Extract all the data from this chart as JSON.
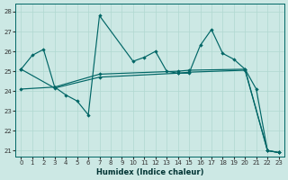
{
  "xlabel": "Humidex (Indice chaleur)",
  "bg_color": "#cce8e4",
  "grid_color": "#b0d8d0",
  "line_color": "#006666",
  "xlim": [
    -0.5,
    23.5
  ],
  "ylim": [
    20.7,
    28.4
  ],
  "yticks": [
    21,
    22,
    23,
    24,
    25,
    26,
    27,
    28
  ],
  "xticks": [
    0,
    1,
    2,
    3,
    4,
    5,
    6,
    7,
    8,
    9,
    10,
    11,
    12,
    13,
    14,
    15,
    16,
    17,
    18,
    19,
    20,
    21,
    22,
    23
  ],
  "line_upper_x": [
    0,
    1,
    2,
    3,
    4,
    5,
    6,
    7,
    10,
    11,
    12,
    13,
    14,
    15,
    16,
    17,
    18,
    19,
    20,
    21,
    22,
    23
  ],
  "line_upper_y": [
    25.1,
    25.8,
    26.1,
    24.2,
    23.8,
    23.5,
    22.8,
    27.8,
    25.5,
    25.7,
    26.0,
    25.0,
    24.9,
    24.9,
    26.3,
    27.1,
    25.9,
    25.6,
    25.1,
    24.1,
    21.0,
    20.9
  ],
  "line_mid_x": [
    0,
    3,
    7,
    14,
    15,
    20,
    22,
    23
  ],
  "line_mid_y": [
    24.1,
    24.2,
    24.85,
    25.0,
    25.05,
    25.1,
    21.0,
    20.9
  ],
  "line_low_x": [
    0,
    3,
    7,
    14,
    15,
    20,
    22,
    23
  ],
  "line_low_y": [
    25.1,
    24.15,
    24.7,
    24.9,
    24.95,
    25.05,
    21.0,
    20.9
  ]
}
